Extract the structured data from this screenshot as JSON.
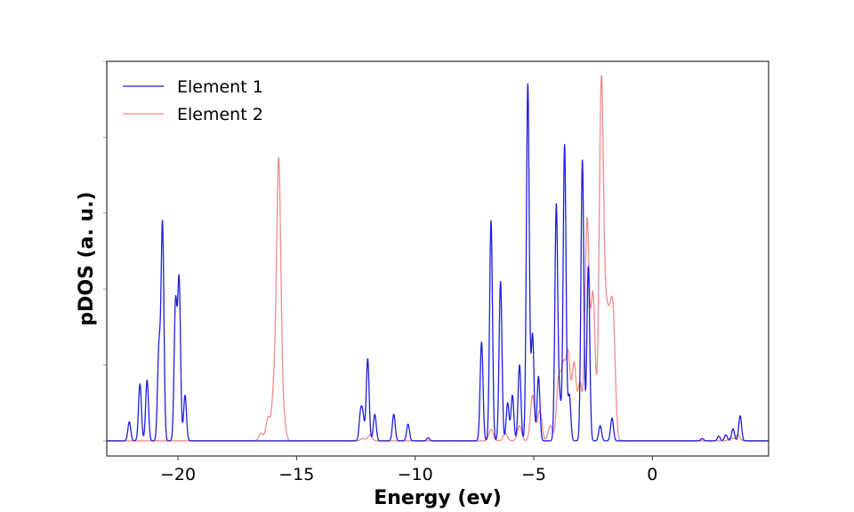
{
  "chart_data": {
    "type": "line",
    "xlabel": "Energy (ev)",
    "ylabel": "pDOS (a. u.)",
    "xlim": [
      -23,
      4.9
    ],
    "ylim": [
      -0.02,
      0.5
    ],
    "x_ticks": [
      -20,
      -15,
      -10,
      -5,
      0
    ],
    "x_tick_labels": [
      "−20",
      "−15",
      "−10",
      "−5",
      "0"
    ],
    "y_ticks": [
      0,
      0.1,
      0.2,
      0.3,
      0.4,
      0.5
    ],
    "y_tick_labels_shown": false,
    "grid": false,
    "legend": "top-left",
    "series": [
      {
        "name": "Element 1",
        "color": "#1f1fdc",
        "width": 0.06,
        "peaks": [
          [
            -22.05,
            0.025
          ],
          [
            -21.6,
            0.075
          ],
          [
            -21.3,
            0.08
          ],
          [
            -20.8,
            0.12
          ],
          [
            -20.65,
            0.285
          ],
          [
            -20.1,
            0.18
          ],
          [
            -19.95,
            0.21
          ],
          [
            -19.7,
            0.06
          ],
          [
            -12.3,
            0.035
          ],
          [
            -12.2,
            0.03
          ],
          [
            -12.0,
            0.108
          ],
          [
            -11.7,
            0.035
          ],
          [
            -10.9,
            0.035
          ],
          [
            -10.3,
            0.022
          ],
          [
            -9.45,
            0.004
          ],
          [
            -7.2,
            0.13
          ],
          [
            -6.8,
            0.29
          ],
          [
            -6.4,
            0.21
          ],
          [
            -6.1,
            0.05
          ],
          [
            -5.9,
            0.06
          ],
          [
            -5.6,
            0.1
          ],
          [
            -5.25,
            0.47
          ],
          [
            -5.05,
            0.14
          ],
          [
            -4.8,
            0.085
          ],
          [
            -4.05,
            0.31
          ],
          [
            -3.9,
            0.05
          ],
          [
            -3.7,
            0.39
          ],
          [
            -3.5,
            0.06
          ],
          [
            -2.95,
            0.37
          ],
          [
            -2.7,
            0.23
          ],
          [
            -2.2,
            0.02
          ],
          [
            -1.7,
            0.03
          ],
          [
            2.1,
            0.003
          ],
          [
            2.8,
            0.006
          ],
          [
            3.1,
            0.008
          ],
          [
            3.4,
            0.016
          ],
          [
            3.7,
            0.033
          ]
        ]
      },
      {
        "name": "Element 2",
        "color": "#f08c8c",
        "width": 0.09,
        "peaks": [
          [
            -16.5,
            0.01
          ],
          [
            -16.2,
            0.03
          ],
          [
            -15.95,
            0.065
          ],
          [
            -15.75,
            0.365
          ],
          [
            -15.55,
            0.03
          ],
          [
            -12.2,
            0.003
          ],
          [
            -11.9,
            0.008
          ],
          [
            -6.8,
            0.015
          ],
          [
            -6.2,
            0.01
          ],
          [
            -5.6,
            0.02
          ],
          [
            -5.05,
            0.06
          ],
          [
            -4.75,
            0.04
          ],
          [
            -4.3,
            0.02
          ],
          [
            -3.95,
            0.08
          ],
          [
            -3.75,
            0.09
          ],
          [
            -3.55,
            0.11
          ],
          [
            -3.3,
            0.1
          ],
          [
            -3.05,
            0.075
          ],
          [
            -2.75,
            0.29
          ],
          [
            -2.5,
            0.19
          ],
          [
            -2.15,
            0.47
          ],
          [
            -1.95,
            0.13
          ],
          [
            -1.8,
            0.11
          ],
          [
            -1.65,
            0.15
          ],
          [
            3.3,
            0.004
          ],
          [
            3.6,
            0.008
          ]
        ]
      }
    ]
  }
}
